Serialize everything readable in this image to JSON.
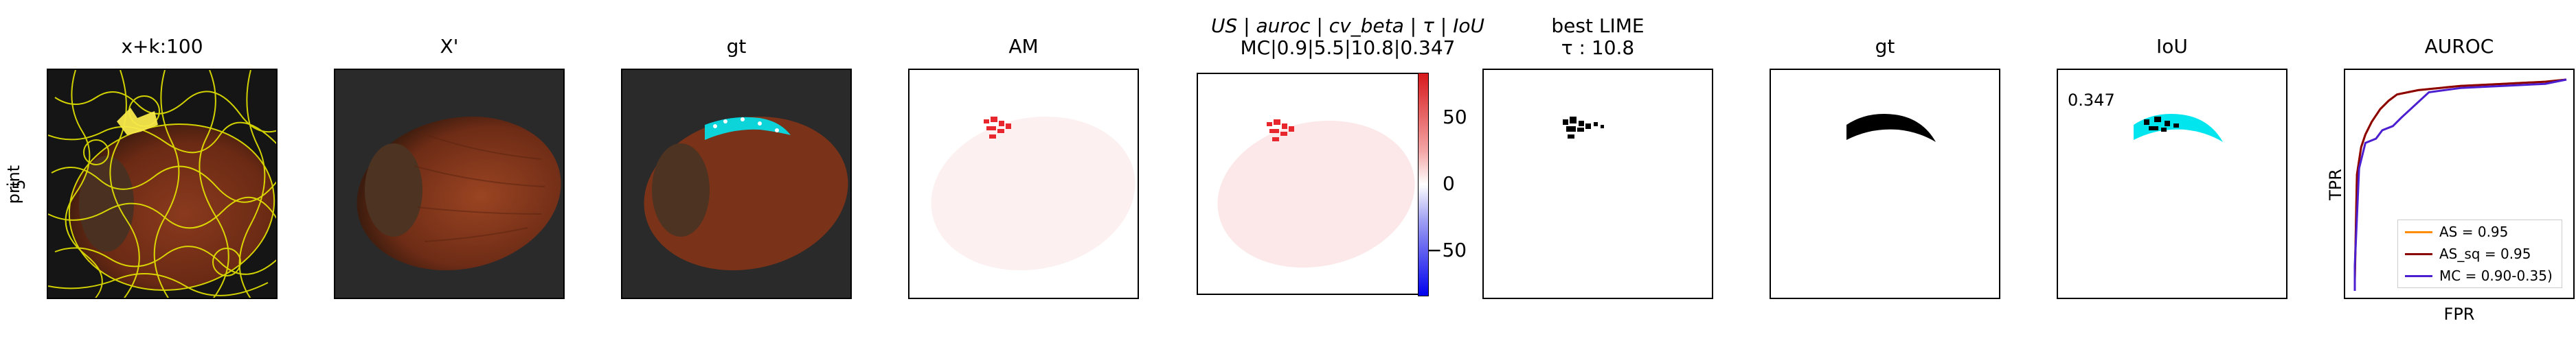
{
  "row_label": {
    "line1": "print",
    "line2": "5"
  },
  "panels": {
    "p1": {
      "title": "x+k:100"
    },
    "p2": {
      "title": "X'"
    },
    "p3": {
      "title": "gt"
    },
    "p4": {
      "title": "AM"
    },
    "p5": {
      "title_line1": "US | auroc | cv_beta | τ | IoU",
      "title_line2": "MC|0.9|5.5|10.8|0.347"
    },
    "p6": {
      "title_line1": "best LIME",
      "title_line2": "τ : 10.8"
    },
    "p7": {
      "title": "gt"
    },
    "p8": {
      "title": "IoU",
      "annotation": "0.347"
    },
    "p9": {
      "title": "AUROC",
      "xlabel": "FPR",
      "ylabel": "TPR"
    }
  },
  "colorbar": {
    "ticks": [
      "50",
      "0",
      "−50"
    ],
    "tick_values": [
      50,
      0,
      -50
    ],
    "range": [
      -85,
      85
    ]
  },
  "colors": {
    "yellow_segments": "#e6e600",
    "cyan_gt": "#00e5ee",
    "heat_red": "#e8262d",
    "AS": "#ff8c00",
    "AS_sq": "#8b0000",
    "MC": "#4b1fd0"
  },
  "chart_data": {
    "type": "line",
    "title": "AUROC",
    "xlabel": "FPR",
    "ylabel": "TPR",
    "xlim": [
      0,
      1
    ],
    "ylim": [
      0,
      1
    ],
    "legend_position": "bottom-right",
    "series": [
      {
        "name": "AS = 0.95",
        "color": "#ff8c00",
        "x": [
          0.0,
          0.01,
          0.03,
          0.05,
          0.08,
          0.12,
          0.16,
          0.2,
          0.3,
          0.5,
          0.7,
          0.9,
          1.0
        ],
        "y": [
          0.05,
          0.55,
          0.68,
          0.74,
          0.8,
          0.86,
          0.9,
          0.93,
          0.95,
          0.97,
          0.98,
          0.99,
          1.0
        ]
      },
      {
        "name": "AS_sq = 0.95",
        "color": "#8b0000",
        "x": [
          0.0,
          0.01,
          0.03,
          0.05,
          0.08,
          0.12,
          0.16,
          0.2,
          0.3,
          0.5,
          0.7,
          0.9,
          1.0
        ],
        "y": [
          0.05,
          0.55,
          0.68,
          0.74,
          0.8,
          0.86,
          0.9,
          0.93,
          0.95,
          0.97,
          0.98,
          0.99,
          1.0
        ]
      },
      {
        "name": "MC = 0.90-0.35)",
        "color": "#4b1fd0",
        "x": [
          0.0,
          0.0,
          0.02,
          0.05,
          0.1,
          0.13,
          0.18,
          0.22,
          0.35,
          0.5,
          0.7,
          0.9,
          1.0
        ],
        "y": [
          0.0,
          0.12,
          0.58,
          0.7,
          0.72,
          0.76,
          0.78,
          0.82,
          0.94,
          0.96,
          0.97,
          0.98,
          1.0
        ]
      }
    ]
  }
}
